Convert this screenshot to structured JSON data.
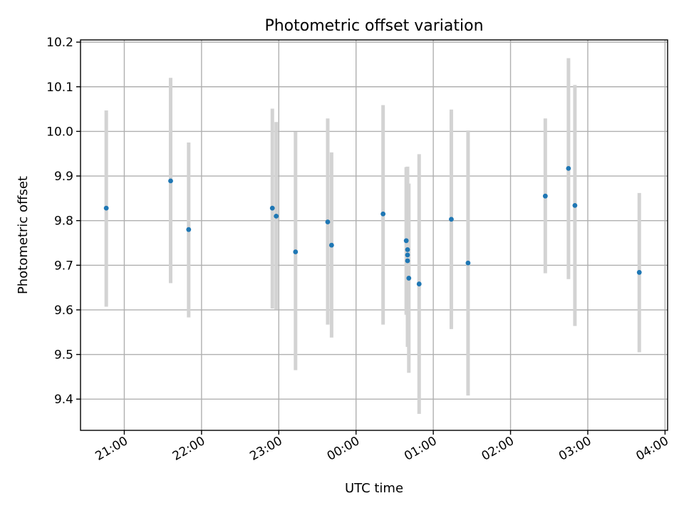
{
  "chart_data": {
    "type": "scatter",
    "title": "Photometric offset variation",
    "xlabel": "UTC time",
    "ylabel": "Photometric offset",
    "x_axis_kind": "time",
    "x_reference": "20:00",
    "xlim": [
      "20:26",
      "04:02"
    ],
    "ylim": [
      9.33,
      10.205
    ],
    "x_ticks": [
      "21:00",
      "22:00",
      "23:00",
      "00:00",
      "01:00",
      "02:00",
      "03:00",
      "04:00"
    ],
    "y_ticks": [
      9.4,
      9.5,
      9.6,
      9.7,
      9.8,
      9.9,
      10.0,
      10.1,
      10.2
    ],
    "y_tick_labels": [
      "9.4",
      "9.5",
      "9.6",
      "9.7",
      "9.8",
      "9.9",
      "10.0",
      "10.1",
      "10.2"
    ],
    "grid": true,
    "colors": {
      "points": "#1f77b4",
      "error_bars": "#d3d3d3",
      "grid": "#b0b0b0"
    },
    "points": [
      {
        "t": "20:46",
        "y": 9.828,
        "lo": 9.607,
        "hi": 10.047
      },
      {
        "t": "21:36",
        "y": 9.889,
        "lo": 9.66,
        "hi": 10.12
      },
      {
        "t": "21:50",
        "y": 9.78,
        "lo": 9.583,
        "hi": 9.975
      },
      {
        "t": "22:55",
        "y": 9.828,
        "lo": 9.603,
        "hi": 10.051
      },
      {
        "t": "22:58",
        "y": 9.81,
        "lo": 9.601,
        "hi": 10.021
      },
      {
        "t": "23:13",
        "y": 9.73,
        "lo": 9.465,
        "hi": 9.999
      },
      {
        "t": "23:38",
        "y": 9.797,
        "lo": 9.567,
        "hi": 10.029
      },
      {
        "t": "23:41",
        "y": 9.745,
        "lo": 9.538,
        "hi": 9.953
      },
      {
        "t": "00:21",
        "y": 9.815,
        "lo": 9.567,
        "hi": 10.059
      },
      {
        "t": "00:39",
        "y": 9.755,
        "lo": 9.589,
        "hi": 9.92
      },
      {
        "t": "00:40",
        "y": 9.735,
        "lo": 9.517,
        "hi": 9.921
      },
      {
        "t": "00:40",
        "y": 9.723,
        "lo": 9.554,
        "hi": 9.883
      },
      {
        "t": "00:40",
        "y": 9.71,
        "lo": 9.52,
        "hi": 9.9
      },
      {
        "t": "00:41",
        "y": 9.671,
        "lo": 9.459,
        "hi": 9.883
      },
      {
        "t": "00:49",
        "y": 9.658,
        "lo": 9.367,
        "hi": 9.949
      },
      {
        "t": "01:14",
        "y": 9.803,
        "lo": 9.557,
        "hi": 10.049
      },
      {
        "t": "01:27",
        "y": 9.705,
        "lo": 9.408,
        "hi": 10.002
      },
      {
        "t": "02:27",
        "y": 9.855,
        "lo": 9.682,
        "hi": 10.029
      },
      {
        "t": "02:45",
        "y": 9.917,
        "lo": 9.669,
        "hi": 10.164
      },
      {
        "t": "02:50",
        "y": 9.834,
        "lo": 9.564,
        "hi": 10.104
      },
      {
        "t": "03:40",
        "y": 9.684,
        "lo": 9.505,
        "hi": 9.862
      }
    ]
  }
}
